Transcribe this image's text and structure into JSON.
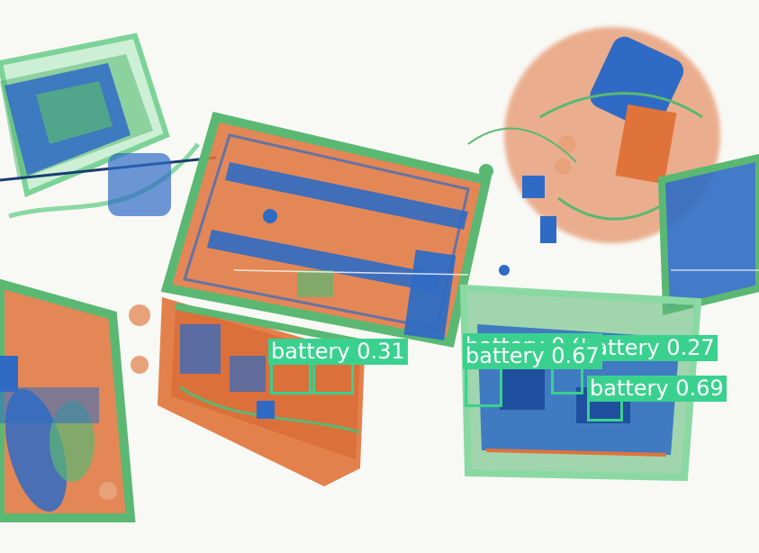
{
  "detections": [
    {
      "class_name": "battery",
      "score": "0.31"
    },
    {
      "class_name": "battery",
      "score": "0.67"
    },
    {
      "class_name": "battery",
      "score": "0.61"
    },
    {
      "class_name": "battery",
      "score": "0.27"
    },
    {
      "class_name": "battery",
      "score": "0.69"
    }
  ],
  "colors": {
    "box": "#3ad18f",
    "organic": "#e0733a",
    "inorganic": "#5ab873",
    "metal": "#2f6bc4",
    "background": "#f8f8f5"
  }
}
